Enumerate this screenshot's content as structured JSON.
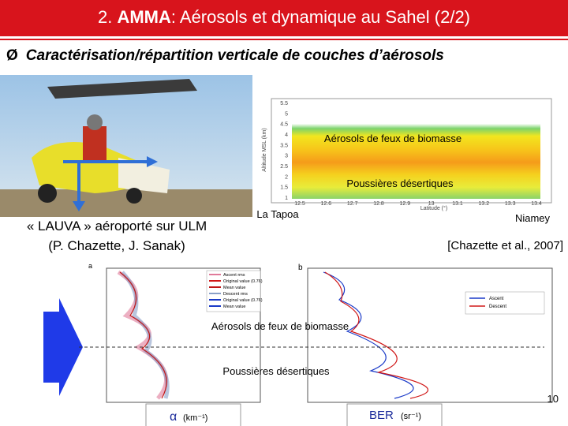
{
  "header": {
    "number": "2.",
    "acronym": "AMMA",
    "rest": ": Aérosols et dynamique au Sahel (2/2)"
  },
  "bullet": {
    "marker": "Ø",
    "text": "Caractérisation/répartition verticale de couches d’aérosols"
  },
  "photo": {
    "caption": [
      "« LAUVA » aéroporté sur ULM",
      "(P. Chazette, J. Sanak)"
    ]
  },
  "lidar": {
    "label_smoke": "Aérosols de feux de biomasse",
    "label_dust": "Poussières désertiques",
    "y_axis": "Altitude MSL (km)",
    "x_axis": "Latitude (°)",
    "yticks": [
      "5.5",
      "5",
      "4.5",
      "4",
      "3.5",
      "3",
      "2.5",
      "2",
      "1.5",
      "1"
    ],
    "xticks": [
      "12.5",
      "12.6",
      "12.7",
      "12.8",
      "12.9",
      "13",
      "13.1",
      "13.2",
      "13.3",
      "13.4"
    ],
    "left_site": "La Tapoa",
    "right_site": "Niamey",
    "reference": "[Chazette et al., 2007]"
  },
  "profiles": {
    "panel_a": "a",
    "panel_b": "b",
    "legend_a": [
      "Ascent rms",
      "Original value (0.76)",
      "Mean value",
      "Descent rms",
      "Original value (0.76)",
      "Mean value"
    ],
    "legend_b": [
      "Ascent",
      "Descent"
    ],
    "label_smoke": "Aérosols de feux de biomasse",
    "label_dust": "Poussières désertiques",
    "alpha_symbol": "α",
    "alpha_unit": "(km⁻¹)",
    "ber_symbol": "BER",
    "ber_unit": "(sr⁻¹)"
  },
  "page_number": "10"
}
